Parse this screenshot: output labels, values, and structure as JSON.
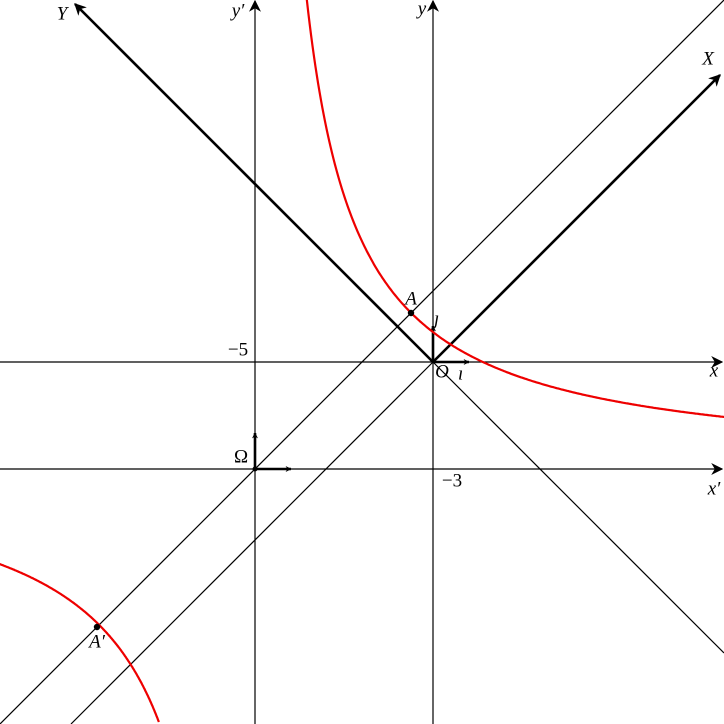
{
  "labels": {
    "Y": "Y",
    "y_prime": "y′",
    "y": "y",
    "X": "X",
    "x": "x",
    "x_prime": "x′",
    "minus5": "−5",
    "minus3": "−3",
    "Omega": "Ω",
    "O": "O",
    "i": "ı⃗",
    "j": "ȷ⃗",
    "A": "A",
    "A_prime": "A′"
  }
}
